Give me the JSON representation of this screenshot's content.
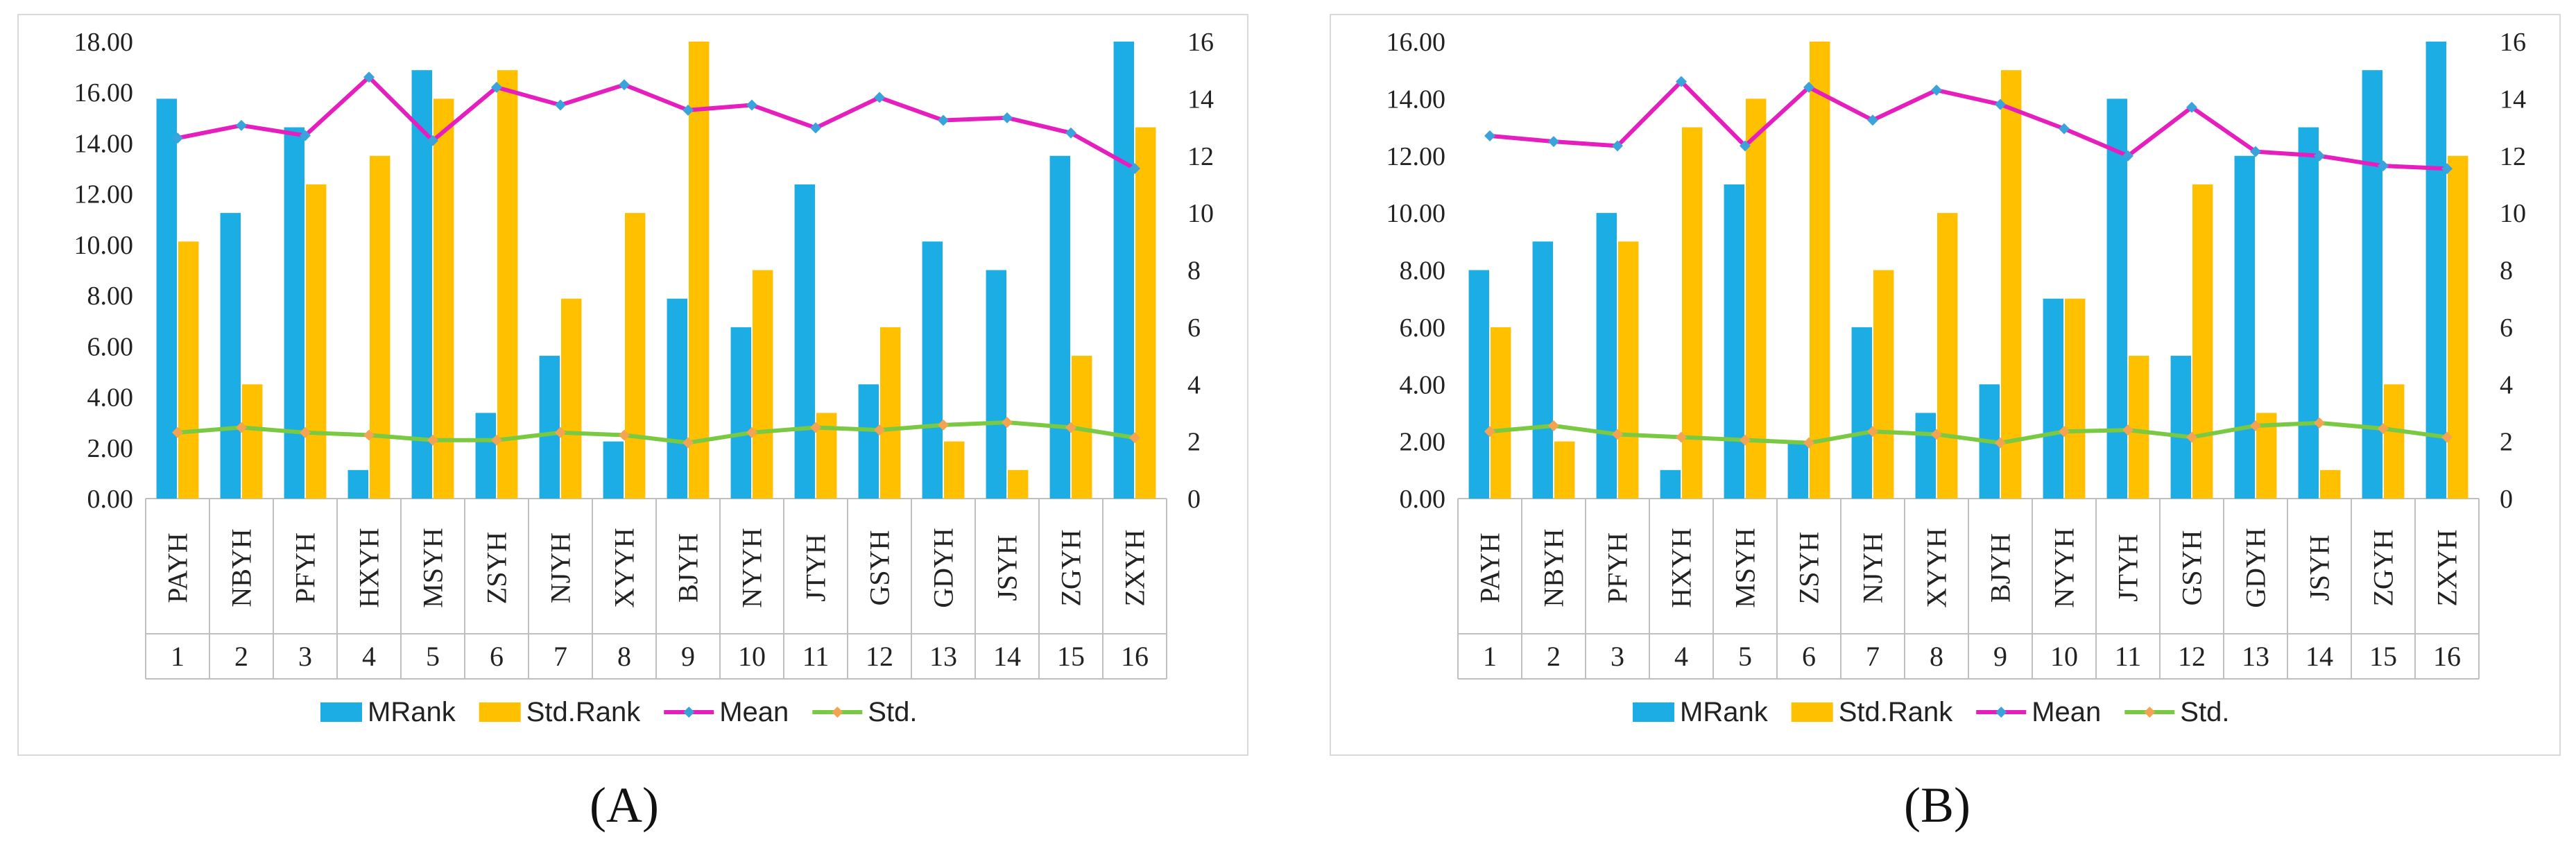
{
  "chart_data": [
    {
      "type": "bar",
      "panel": "A",
      "categories": [
        "PAYH",
        "NBYH",
        "PFYH",
        "HXYH",
        "MSYH",
        "ZSYH",
        "NJYH",
        "XYYH",
        "BJYH",
        "NYYH",
        "JTYH",
        "GSYH",
        "GDYH",
        "JSYH",
        "ZGYH",
        "ZXYH"
      ],
      "index_labels": [
        "1",
        "2",
        "3",
        "4",
        "5",
        "6",
        "7",
        "8",
        "9",
        "10",
        "11",
        "12",
        "13",
        "14",
        "15",
        "16"
      ],
      "left_axis": {
        "ylim": [
          0,
          18
        ],
        "ticks": [
          "0.00",
          "2.00",
          "4.00",
          "6.00",
          "8.00",
          "10.00",
          "12.00",
          "14.00",
          "16.00",
          "18.00"
        ]
      },
      "right_axis": {
        "ylim": [
          0,
          16
        ],
        "ticks": [
          "0",
          "2",
          "4",
          "6",
          "8",
          "10",
          "12",
          "14",
          "16"
        ]
      },
      "series": [
        {
          "name": "MRank",
          "kind": "bar",
          "axis": "right",
          "color": "#1CADE4",
          "values": [
            14,
            10,
            13,
            1,
            15,
            3,
            5,
            2,
            7,
            6,
            11,
            4,
            9,
            8,
            12,
            16
          ]
        },
        {
          "name": "Std.Rank",
          "kind": "bar",
          "axis": "right",
          "color": "#FFC000",
          "values": [
            9,
            4,
            11,
            12,
            14,
            15,
            7,
            10,
            16,
            8,
            3,
            6,
            2,
            1,
            5,
            13
          ]
        },
        {
          "name": "Mean",
          "kind": "line",
          "axis": "left",
          "color": "#E61EBE",
          "values": [
            14.2,
            14.7,
            14.3,
            16.6,
            14.1,
            16.2,
            15.5,
            16.3,
            15.3,
            15.5,
            14.6,
            15.8,
            14.9,
            15.0,
            14.4,
            13.0
          ]
        },
        {
          "name": "Std.",
          "kind": "line",
          "axis": "left",
          "color": "#7AC943",
          "values": [
            2.6,
            2.8,
            2.6,
            2.5,
            2.3,
            2.3,
            2.6,
            2.5,
            2.2,
            2.6,
            2.8,
            2.7,
            2.9,
            3.0,
            2.8,
            2.4
          ]
        }
      ],
      "caption": "(A)"
    },
    {
      "type": "bar",
      "panel": "B",
      "categories": [
        "PAYH",
        "NBYH",
        "PFYH",
        "HXYH",
        "MSYH",
        "ZSYH",
        "NJYH",
        "XYYH",
        "BJYH",
        "NYYH",
        "JTYH",
        "GSYH",
        "GDYH",
        "JSYH",
        "ZGYH",
        "ZXYH"
      ],
      "index_labels": [
        "1",
        "2",
        "3",
        "4",
        "5",
        "6",
        "7",
        "8",
        "9",
        "10",
        "11",
        "12",
        "13",
        "14",
        "15",
        "16"
      ],
      "left_axis": {
        "ylim": [
          0,
          16
        ],
        "ticks": [
          "0.00",
          "2.00",
          "4.00",
          "6.00",
          "8.00",
          "10.00",
          "12.00",
          "14.00",
          "16.00"
        ]
      },
      "right_axis": {
        "ylim": [
          0,
          16
        ],
        "ticks": [
          "0",
          "2",
          "4",
          "6",
          "8",
          "10",
          "12",
          "14",
          "16"
        ]
      },
      "series": [
        {
          "name": "MRank",
          "kind": "bar",
          "axis": "right",
          "color": "#1CADE4",
          "values": [
            8,
            9,
            10,
            1,
            11,
            2,
            6,
            3,
            4,
            7,
            14,
            5,
            12,
            13,
            15,
            16
          ]
        },
        {
          "name": "Std.Rank",
          "kind": "bar",
          "axis": "right",
          "color": "#FFC000",
          "values": [
            6,
            2,
            9,
            13,
            14,
            16,
            8,
            10,
            15,
            7,
            5,
            11,
            3,
            1,
            4,
            12
          ]
        },
        {
          "name": "Mean",
          "kind": "line",
          "axis": "left",
          "color": "#E61EBE",
          "values": [
            12.7,
            12.5,
            12.35,
            14.6,
            12.35,
            14.4,
            13.25,
            14.3,
            13.8,
            12.95,
            12.0,
            13.7,
            12.15,
            12.0,
            11.65,
            11.55
          ]
        },
        {
          "name": "Std.",
          "kind": "line",
          "axis": "left",
          "color": "#7AC943",
          "values": [
            2.35,
            2.55,
            2.25,
            2.15,
            2.05,
            1.95,
            2.35,
            2.25,
            1.95,
            2.35,
            2.4,
            2.15,
            2.55,
            2.65,
            2.45,
            2.15
          ]
        }
      ],
      "caption": "(B)"
    }
  ]
}
